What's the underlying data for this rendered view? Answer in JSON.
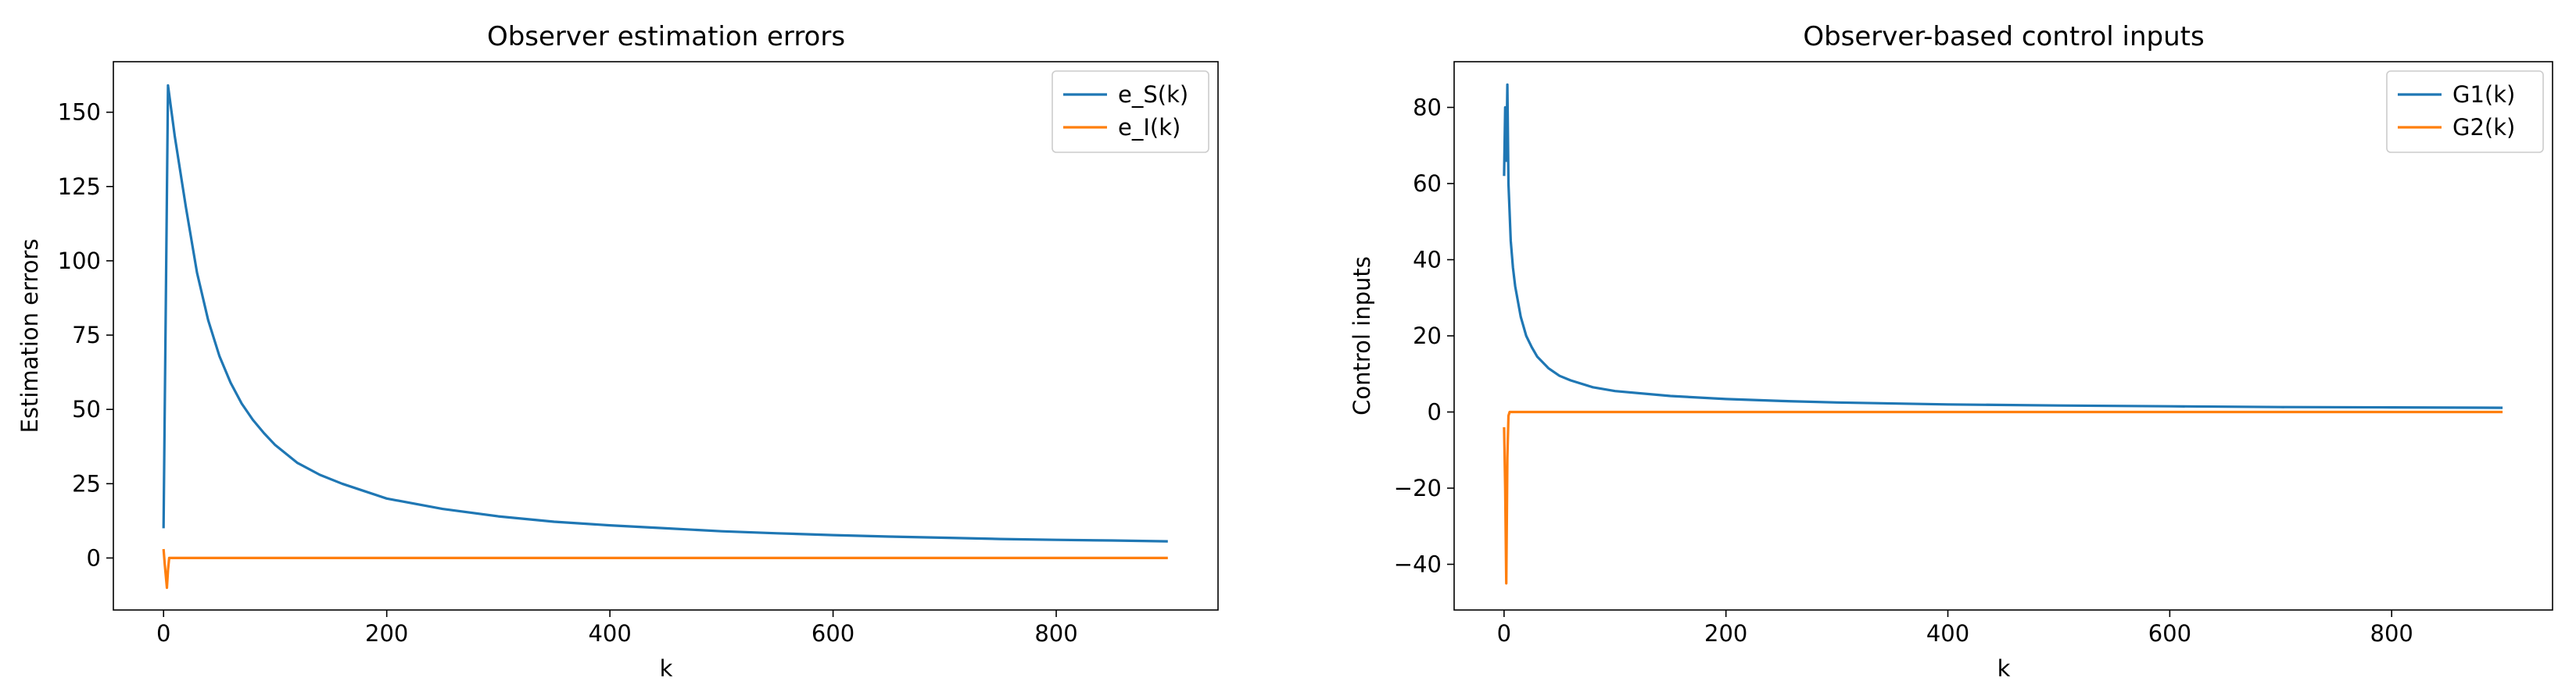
{
  "chart_data": [
    {
      "type": "line",
      "title": "Observer estimation errors",
      "xlabel": "k",
      "ylabel": "Estimation errors",
      "xlim": [
        -45,
        945
      ],
      "ylim": [
        -17.5,
        167
      ],
      "xticks": [
        0,
        200,
        400,
        600,
        800
      ],
      "yticks": [
        0,
        25,
        50,
        75,
        100,
        125,
        150
      ],
      "xtick_labels": [
        "0",
        "200",
        "400",
        "600",
        "800"
      ],
      "ytick_labels": [
        "0",
        "25",
        "50",
        "75",
        "100",
        "125",
        "150"
      ],
      "grid": false,
      "legend": "top-right",
      "series": [
        {
          "name": "e_S(k)",
          "color": "#1f77b4",
          "points": [
            [
              0,
              10
            ],
            [
              4,
              159
            ],
            [
              10,
              142
            ],
            [
              20,
              118
            ],
            [
              30,
              96
            ],
            [
              40,
              80
            ],
            [
              50,
              68
            ],
            [
              60,
              59
            ],
            [
              70,
              52
            ],
            [
              80,
              46.5
            ],
            [
              90,
              42
            ],
            [
              100,
              38
            ],
            [
              120,
              32
            ],
            [
              140,
              28
            ],
            [
              160,
              25
            ],
            [
              180,
              22.5
            ],
            [
              200,
              20
            ],
            [
              250,
              16.5
            ],
            [
              300,
              14
            ],
            [
              350,
              12.2
            ],
            [
              400,
              11
            ],
            [
              450,
              10
            ],
            [
              500,
              9
            ],
            [
              550,
              8.3
            ],
            [
              600,
              7.7
            ],
            [
              650,
              7.2
            ],
            [
              700,
              6.8
            ],
            [
              750,
              6.4
            ],
            [
              800,
              6.1
            ],
            [
              850,
              5.9
            ],
            [
              900,
              5.6
            ]
          ]
        },
        {
          "name": "e_I(k)",
          "color": "#ff7f0e",
          "points": [
            [
              0,
              3
            ],
            [
              1,
              -2
            ],
            [
              2,
              -6
            ],
            [
              3,
              -10
            ],
            [
              4,
              -4
            ],
            [
              5,
              0
            ],
            [
              100,
              0
            ],
            [
              300,
              0
            ],
            [
              500,
              0
            ],
            [
              700,
              0
            ],
            [
              900,
              0
            ]
          ]
        }
      ]
    },
    {
      "type": "line",
      "title": "Observer-based control inputs",
      "xlabel": "k",
      "ylabel": "Control inputs",
      "xlim": [
        -45,
        945
      ],
      "ylim": [
        -52,
        92
      ],
      "xticks": [
        0,
        200,
        400,
        600,
        800
      ],
      "yticks": [
        -40,
        -20,
        0,
        20,
        40,
        60,
        80
      ],
      "xtick_labels": [
        "0",
        "200",
        "400",
        "600",
        "800"
      ],
      "ytick_labels": [
        "−40",
        "−20",
        "0",
        "20",
        "40",
        "60",
        "80"
      ],
      "grid": false,
      "legend": "top-right",
      "series": [
        {
          "name": "G1(k)",
          "color": "#1f77b4",
          "points": [
            [
              0,
              62
            ],
            [
              1,
              80
            ],
            [
              2,
              66
            ],
            [
              3,
              86
            ],
            [
              4,
              60
            ],
            [
              6,
              45
            ],
            [
              8,
              38
            ],
            [
              10,
              33
            ],
            [
              15,
              25
            ],
            [
              20,
              20
            ],
            [
              25,
              17
            ],
            [
              30,
              14.5
            ],
            [
              40,
              11.5
            ],
            [
              50,
              9.5
            ],
            [
              60,
              8.3
            ],
            [
              80,
              6.5
            ],
            [
              100,
              5.5
            ],
            [
              150,
              4.2
            ],
            [
              200,
              3.4
            ],
            [
              250,
              2.9
            ],
            [
              300,
              2.5
            ],
            [
              400,
              2
            ],
            [
              500,
              1.7
            ],
            [
              600,
              1.5
            ],
            [
              700,
              1.3
            ],
            [
              800,
              1.2
            ],
            [
              900,
              1.1
            ]
          ]
        },
        {
          "name": "G2(k)",
          "color": "#ff7f0e",
          "points": [
            [
              0,
              -4
            ],
            [
              1,
              -20
            ],
            [
              2,
              -45
            ],
            [
              3,
              -12
            ],
            [
              4,
              -1
            ],
            [
              5,
              0
            ],
            [
              100,
              0
            ],
            [
              300,
              0
            ],
            [
              500,
              0
            ],
            [
              700,
              0
            ],
            [
              900,
              0
            ]
          ]
        }
      ]
    }
  ]
}
